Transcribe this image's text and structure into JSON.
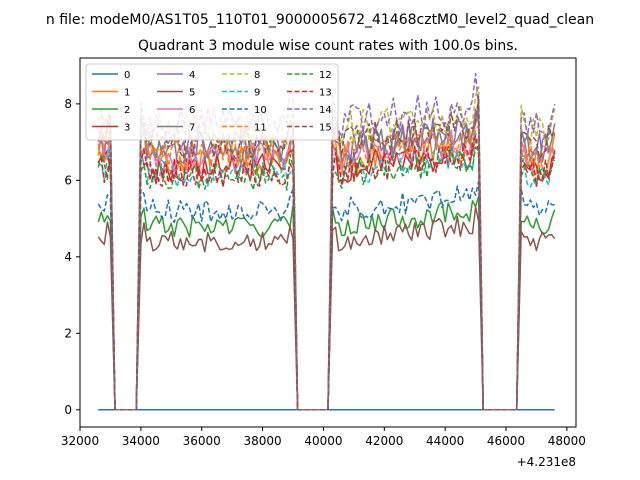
{
  "figure": {
    "suptitle": "n file: modeM0/AS1T05_110T01_9000005672_41468cztM0_level2_quad_clean",
    "offset_text": "+4.231e8"
  },
  "chart_data": {
    "type": "line",
    "title": "Quadrant 3 module wise count rates with 100.0s bins.",
    "xlabel": "",
    "ylabel": "",
    "x_offset": 423100000,
    "xlim": [
      32000,
      48300
    ],
    "ylim": [
      -0.45,
      9.2
    ],
    "xticks": [
      32000,
      34000,
      36000,
      38000,
      40000,
      42000,
      44000,
      46000,
      48000
    ],
    "xtick_labels": [
      "32000",
      "34000",
      "36000",
      "38000",
      "40000",
      "42000",
      "44000",
      "46000",
      "48000"
    ],
    "yticks": [
      0,
      2,
      4,
      6,
      8
    ],
    "ytick_labels": [
      "0",
      "2",
      "4",
      "6",
      "8"
    ],
    "grid": false,
    "legend": {
      "placement": "top-left",
      "columns": 4
    },
    "segments": [
      {
        "x_start": 32600,
        "x_end": 33000
      },
      {
        "x_start": 34000,
        "x_end": 39000
      },
      {
        "x_start": 40300,
        "x_end": 45100
      },
      {
        "x_start": 46500,
        "x_end": 47600
      }
    ],
    "series": [
      {
        "name": "0",
        "color": "#1f77b4",
        "dashed": false,
        "level": 0.0,
        "flat": true
      },
      {
        "name": "1",
        "color": "#ff7f0e",
        "dashed": false,
        "level": 6.5
      },
      {
        "name": "2",
        "color": "#2ca02c",
        "dashed": false,
        "level": 4.8
      },
      {
        "name": "3",
        "color": "#d62728",
        "dashed": false,
        "level": 6.3
      },
      {
        "name": "4",
        "color": "#9467bd",
        "dashed": false,
        "level": 6.9
      },
      {
        "name": "5",
        "color": "#8c564b",
        "dashed": false,
        "level": 4.4
      },
      {
        "name": "6",
        "color": "#e377c2",
        "dashed": false,
        "level": 6.6
      },
      {
        "name": "7",
        "color": "#7f7f7f",
        "dashed": false,
        "level": 6.8
      },
      {
        "name": "8",
        "color": "#bcbd22",
        "dashed": true,
        "level": 7.3
      },
      {
        "name": "9",
        "color": "#17becf",
        "dashed": true,
        "level": 6.2
      },
      {
        "name": "10",
        "color": "#1f77b4",
        "dashed": true,
        "level": 5.2
      },
      {
        "name": "11",
        "color": "#ff7f0e",
        "dashed": true,
        "level": 6.7
      },
      {
        "name": "12",
        "color": "#2ca02c",
        "dashed": true,
        "level": 6.1
      },
      {
        "name": "13",
        "color": "#d62728",
        "dashed": true,
        "level": 6.2
      },
      {
        "name": "14",
        "color": "#9467bd",
        "dashed": true,
        "level": 7.5
      },
      {
        "name": "15",
        "color": "#8c564b",
        "dashed": true,
        "level": 7.0
      }
    ]
  }
}
